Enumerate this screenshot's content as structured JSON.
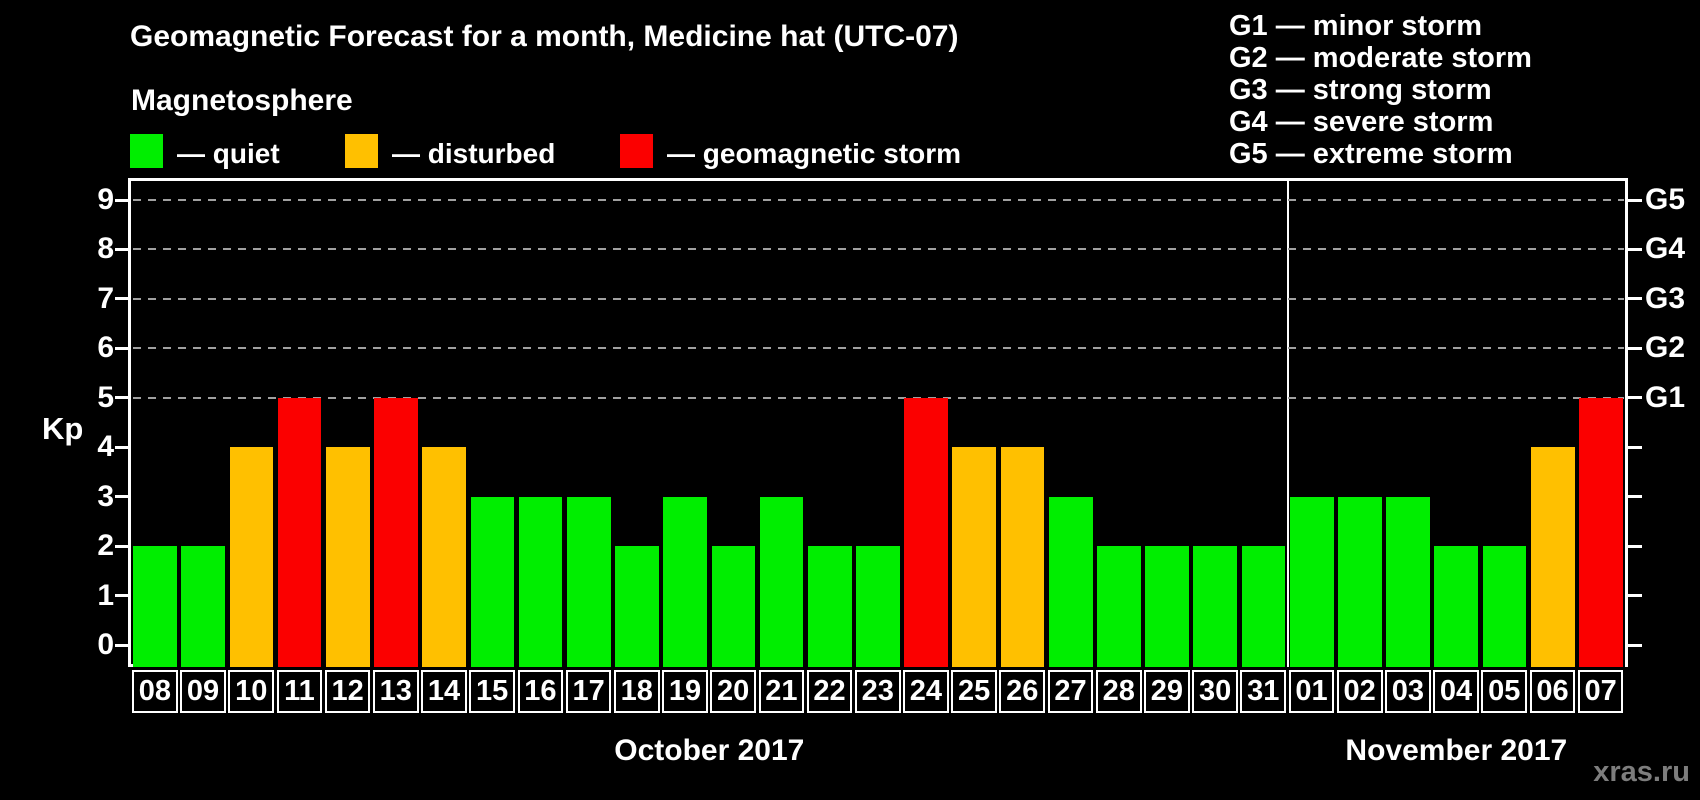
{
  "header": {
    "title": "Geomagnetic Forecast for a month, Medicine hat (UTC-07)",
    "subtitle": "Magnetosphere"
  },
  "legend": {
    "items": [
      {
        "status": "quiet",
        "label": "— quiet",
        "color": "#00ee00"
      },
      {
        "status": "disturbed",
        "label": "— disturbed",
        "color": "#ffc000"
      },
      {
        "status": "storm",
        "label": "— geomagnetic storm",
        "color": "#fb0000"
      }
    ]
  },
  "g_legend": {
    "lines": [
      "G1 — minor storm",
      "G2 — moderate storm",
      "G3 — strong storm",
      "G4 — severe storm",
      "G5 — extreme storm"
    ]
  },
  "watermark": "xras.ru",
  "chart_data": {
    "type": "bar",
    "title": "Geomagnetic Forecast for a month, Medicine hat (UTC-07)",
    "ylabel": "Kp",
    "ylim": [
      0,
      9
    ],
    "y_ticks": [
      0,
      1,
      2,
      3,
      4,
      5,
      6,
      7,
      8,
      9
    ],
    "gridlines_at": [
      5,
      6,
      7,
      8,
      9
    ],
    "grid": "dashed-horizontal",
    "legend_position": "top",
    "right_axis": [
      {
        "kp": 5,
        "label": "G1"
      },
      {
        "kp": 6,
        "label": "G2"
      },
      {
        "kp": 7,
        "label": "G3"
      },
      {
        "kp": 8,
        "label": "G4"
      },
      {
        "kp": 9,
        "label": "G5"
      }
    ],
    "status_colors": {
      "quiet": "#00ee00",
      "disturbed": "#ffc000",
      "storm": "#fb0000"
    },
    "months": [
      {
        "label": "October 2017",
        "days": [
          {
            "day": "08",
            "kp": 2,
            "status": "quiet"
          },
          {
            "day": "09",
            "kp": 2,
            "status": "quiet"
          },
          {
            "day": "10",
            "kp": 4,
            "status": "disturbed"
          },
          {
            "day": "11",
            "kp": 5,
            "status": "storm"
          },
          {
            "day": "12",
            "kp": 4,
            "status": "disturbed"
          },
          {
            "day": "13",
            "kp": 5,
            "status": "storm"
          },
          {
            "day": "14",
            "kp": 4,
            "status": "disturbed"
          },
          {
            "day": "15",
            "kp": 3,
            "status": "quiet"
          },
          {
            "day": "16",
            "kp": 3,
            "status": "quiet"
          },
          {
            "day": "17",
            "kp": 3,
            "status": "quiet"
          },
          {
            "day": "18",
            "kp": 2,
            "status": "quiet"
          },
          {
            "day": "19",
            "kp": 3,
            "status": "quiet"
          },
          {
            "day": "20",
            "kp": 2,
            "status": "quiet"
          },
          {
            "day": "21",
            "kp": 3,
            "status": "quiet"
          },
          {
            "day": "22",
            "kp": 2,
            "status": "quiet"
          },
          {
            "day": "23",
            "kp": 2,
            "status": "quiet"
          },
          {
            "day": "24",
            "kp": 5,
            "status": "storm"
          },
          {
            "day": "25",
            "kp": 4,
            "status": "disturbed"
          },
          {
            "day": "26",
            "kp": 4,
            "status": "disturbed"
          },
          {
            "day": "27",
            "kp": 3,
            "status": "quiet"
          },
          {
            "day": "28",
            "kp": 2,
            "status": "quiet"
          },
          {
            "day": "29",
            "kp": 2,
            "status": "quiet"
          },
          {
            "day": "30",
            "kp": 2,
            "status": "quiet"
          },
          {
            "day": "31",
            "kp": 2,
            "status": "quiet"
          }
        ]
      },
      {
        "label": "November 2017",
        "days": [
          {
            "day": "01",
            "kp": 3,
            "status": "quiet"
          },
          {
            "day": "02",
            "kp": 3,
            "status": "quiet"
          },
          {
            "day": "03",
            "kp": 3,
            "status": "quiet"
          },
          {
            "day": "04",
            "kp": 2,
            "status": "quiet"
          },
          {
            "day": "05",
            "kp": 2,
            "status": "quiet"
          },
          {
            "day": "06",
            "kp": 4,
            "status": "disturbed"
          },
          {
            "day": "07",
            "kp": 5,
            "status": "storm"
          }
        ]
      }
    ]
  }
}
